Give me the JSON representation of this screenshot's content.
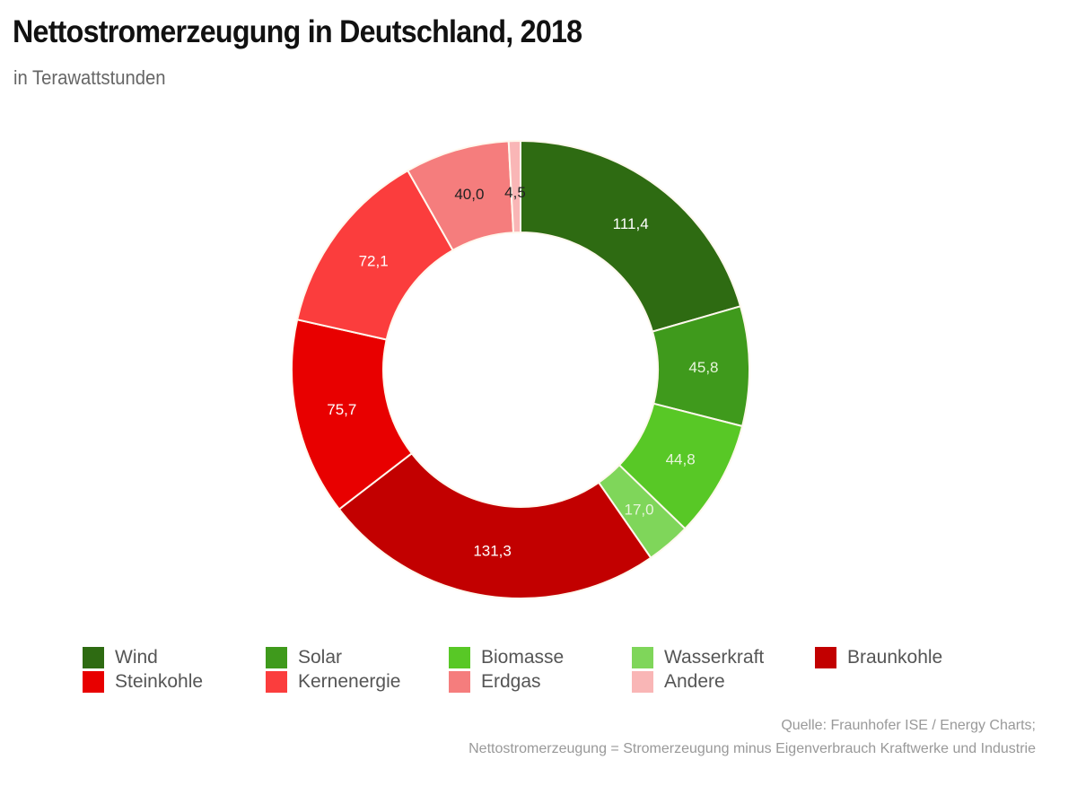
{
  "header": {
    "title": "Nettostromerzeugung in Deutschland, 2018",
    "subtitle": "in Terawattstunden"
  },
  "chart_data": {
    "type": "pie",
    "variant": "donut",
    "title": "Nettostromerzeugung in Deutschland, 2018",
    "subtitle": "in Terawattstunden",
    "unit": "TWh",
    "start_angle": "top",
    "direction": "clockwise",
    "legend_position": "bottom",
    "slices": [
      {
        "name": "Wind",
        "value": 111.4,
        "label": "111,4",
        "color": "#2e6b12",
        "label_color": "#ffffff"
      },
      {
        "name": "Solar",
        "value": 45.8,
        "label": "45,8",
        "color": "#3f9a1c",
        "label_color": "#e8f5dc"
      },
      {
        "name": "Biomasse",
        "value": 44.8,
        "label": "44,8",
        "color": "#58c826",
        "label_color": "#e8f5dc"
      },
      {
        "name": "Wasserkraft",
        "value": 17.0,
        "label": "17,0",
        "color": "#7fd65a",
        "label_color": "#e8f5dc"
      },
      {
        "name": "Braunkohle",
        "value": 131.3,
        "label": "131,3",
        "color": "#c20000",
        "label_color": "#ffffff"
      },
      {
        "name": "Steinkohle",
        "value": 75.7,
        "label": "75,7",
        "color": "#e80000",
        "label_color": "#ffffff"
      },
      {
        "name": "Kernenergie",
        "value": 72.1,
        "label": "72,1",
        "color": "#fb3d3d",
        "label_color": "#ffffff"
      },
      {
        "name": "Erdgas",
        "value": 40.0,
        "label": "40,0",
        "color": "#f57d7d",
        "label_color": "#222222"
      },
      {
        "name": "Andere",
        "value": 4.5,
        "label": "4,5",
        "color": "#f9b6b6",
        "label_color": "#222222"
      }
    ]
  },
  "legend": {
    "items": [
      {
        "label": "Wind",
        "color": "#2e6b12"
      },
      {
        "label": "Solar",
        "color": "#3f9a1c"
      },
      {
        "label": "Biomasse",
        "color": "#58c826"
      },
      {
        "label": "Wasserkraft",
        "color": "#7fd65a"
      },
      {
        "label": "Braunkohle",
        "color": "#c20000"
      },
      {
        "label": "Steinkohle",
        "color": "#e80000"
      },
      {
        "label": "Kernenergie",
        "color": "#fb3d3d"
      },
      {
        "label": "Erdgas",
        "color": "#f57d7d"
      },
      {
        "label": "Andere",
        "color": "#f9b6b6"
      }
    ]
  },
  "footer": {
    "source": "Quelle: Fraunhofer ISE / Energy Charts;",
    "note": "Nettostromerzeugung = Stromerzeugung minus Eigenverbrauch Kraftwerke und Industrie"
  }
}
